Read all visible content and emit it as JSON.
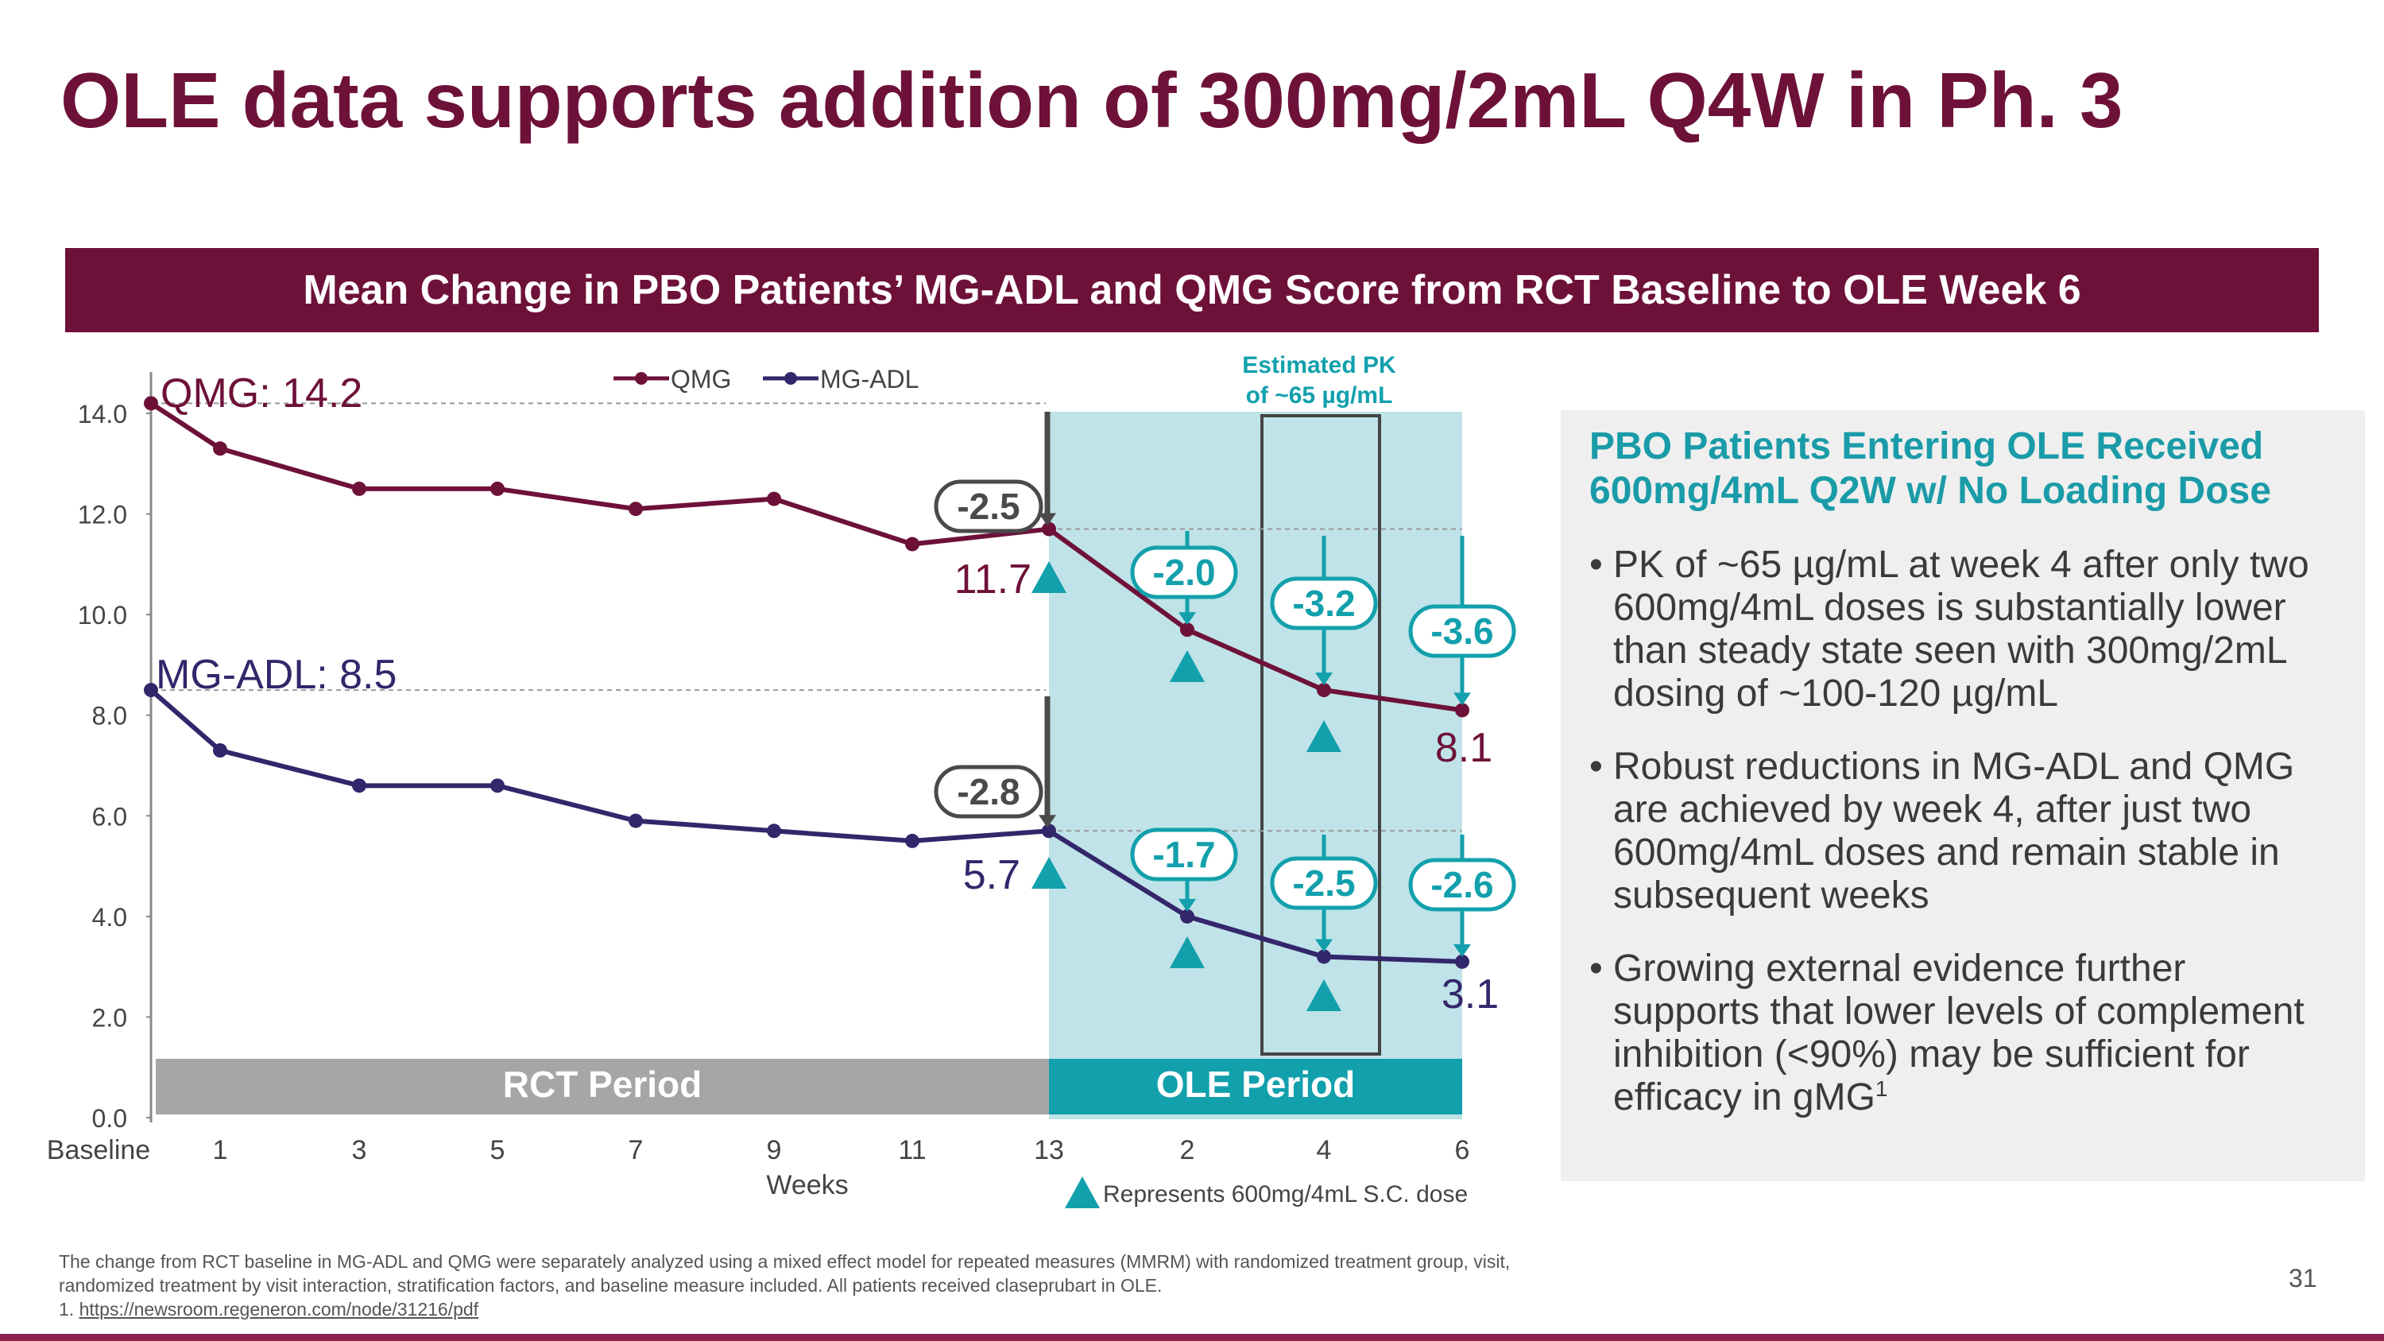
{
  "title": "OLE data supports addition of 300mg/2mL Q4W in Ph. 3",
  "banner": "Mean Change in PBO Patients’ MG-ADL and QMG Score from RCT Baseline to OLE Week 6",
  "chart_data": {
    "type": "line",
    "categories": [
      "Baseline",
      "1",
      "3",
      "5",
      "7",
      "9",
      "11",
      "13",
      "2",
      "4",
      "6"
    ],
    "xlabel": "Weeks",
    "ylabel": "",
    "ylim": [
      0,
      14
    ],
    "yticks": [
      "0.0",
      "2.0",
      "4.0",
      "6.0",
      "8.0",
      "10.0",
      "12.0",
      "14.0"
    ],
    "series": [
      {
        "name": "QMG",
        "color": "#6e1139",
        "values": [
          14.2,
          13.3,
          12.5,
          12.5,
          12.1,
          12.3,
          11.4,
          11.7,
          9.7,
          8.5,
          8.1
        ]
      },
      {
        "name": "MG-ADL",
        "color": "#33266b",
        "values": [
          8.5,
          7.3,
          6.6,
          6.6,
          5.9,
          5.7,
          5.5,
          5.7,
          4.0,
          3.2,
          3.1
        ]
      }
    ],
    "start_labels": [
      {
        "text": "QMG: 14.2",
        "series": "QMG",
        "color": "#6e1139"
      },
      {
        "text": "MG-ADL: 8.5",
        "series": "MG-ADL",
        "color": "#33266b"
      }
    ],
    "end_labels": [
      {
        "text": "11.7",
        "series": "QMG",
        "index": 7,
        "color": "#6e1139"
      },
      {
        "text": "8.1",
        "series": "QMG",
        "index": 10,
        "color": "#6e1139"
      },
      {
        "text": "5.7",
        "series": "MG-ADL",
        "index": 7,
        "color": "#33266b"
      },
      {
        "text": "3.1",
        "series": "MG-ADL",
        "index": 10,
        "color": "#33266b"
      }
    ],
    "rct_change": [
      {
        "text": "-2.5",
        "series": "QMG"
      },
      {
        "text": "-2.8",
        "series": "MG-ADL"
      }
    ],
    "ole_change": {
      "QMG": [
        "-2.0",
        "-3.2",
        "-3.6"
      ],
      "MG-ADL": [
        "-1.7",
        "-2.5",
        "-2.6"
      ]
    },
    "dose_markers": {
      "QMG": [
        7,
        8,
        9
      ],
      "MG-ADL": [
        7,
        8,
        9
      ]
    },
    "periods": [
      {
        "label": "RCT Period",
        "from": 0,
        "to": 7,
        "color": "#a6a6a6"
      },
      {
        "label": "OLE Period",
        "from": 7,
        "to": 10,
        "color": "#12a0ac"
      }
    ],
    "ole_shade_color": "#bfe3e8",
    "pk_box": {
      "label_line1": "Estimated PK",
      "label_line2": "of ~65 µg/mL",
      "category": "4"
    },
    "dose_legend": "Represents 600mg/4mL S.C. dose",
    "teal": "#12a0ac"
  },
  "side_panel": {
    "heading_line1": "PBO Patients Entering OLE Received",
    "heading_line2": "600mg/4mL Q2W w/ No Loading Dose",
    "bullet1": "PK of ~65 µg/mL at week 4 after only two 600mg/4mL doses is substantially lower than steady state seen with 300mg/2mL dosing of ~100-120 µg/mL",
    "bullet2": "Robust reductions in MG-ADL and QMG are achieved by week 4, after just two 600mg/4mL doses and remain stable in subsequent weeks",
    "bullet3": "Growing external evidence further supports that lower levels of complement inhibition (<90%) may be sufficient for efficacy in gMG",
    "bullet3_sup": "1"
  },
  "footnote": {
    "text": "The change from RCT baseline in MG-ADL and QMG were separately analyzed using a mixed effect model for repeated measures (MMRM) with randomized treatment group, visit, randomized treatment by visit interaction, stratification factors, and baseline measure included. All patients received claseprubart in OLE.",
    "ref_prefix": "1. ",
    "ref_link": "https://newsroom.regeneron.com/node/31216/pdf"
  },
  "page_number": "31"
}
